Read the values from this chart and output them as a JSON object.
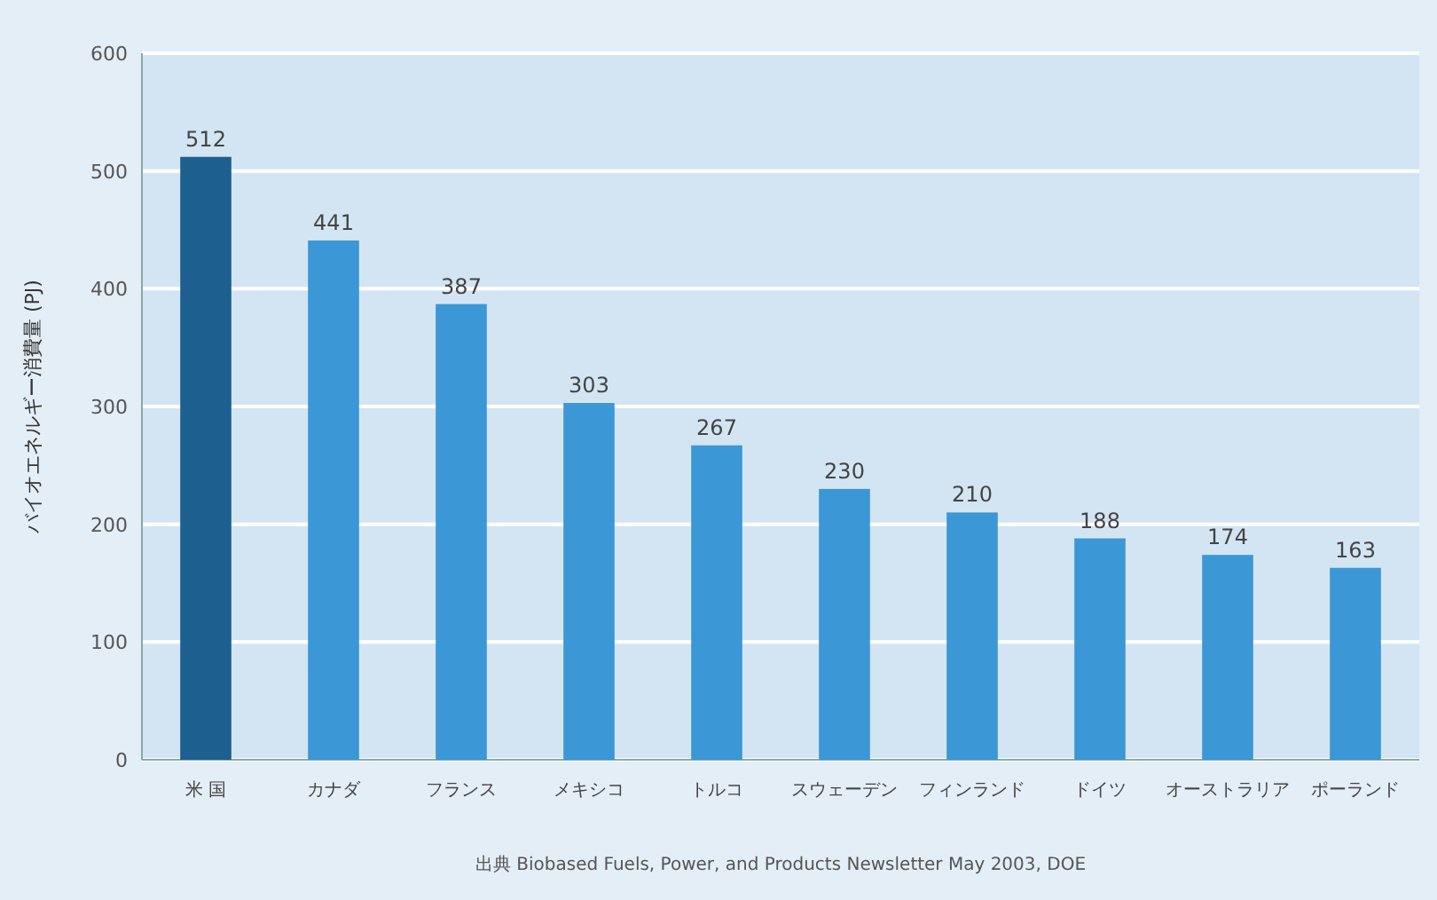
{
  "chart_data": {
    "type": "bar",
    "ylabel": "バイオエネルギー消費量 (PJ)",
    "categories": [
      "米 国",
      "カナダ",
      "フランス",
      "メキシコ",
      "トルコ",
      "スウェーデン",
      "フィンランド",
      "ドイツ",
      "オーストラリア",
      "ポーランド"
    ],
    "values": [
      512,
      441,
      387,
      303,
      267,
      230,
      210,
      188,
      174,
      163
    ],
    "colors": [
      "#1d5f8e",
      "#3b97d5",
      "#3b97d5",
      "#3b97d5",
      "#3b97d5",
      "#3b97d5",
      "#3b97d5",
      "#3b97d5",
      "#3b97d5",
      "#3b97d5"
    ],
    "ylim": [
      0,
      600
    ],
    "yticks": [
      0,
      100,
      200,
      300,
      400,
      500,
      600
    ],
    "grid": "y",
    "data_labels": true,
    "annotations": [
      "出典 Biobased Fuels, Power, and Products Newsletter May 2003, DOE"
    ]
  }
}
